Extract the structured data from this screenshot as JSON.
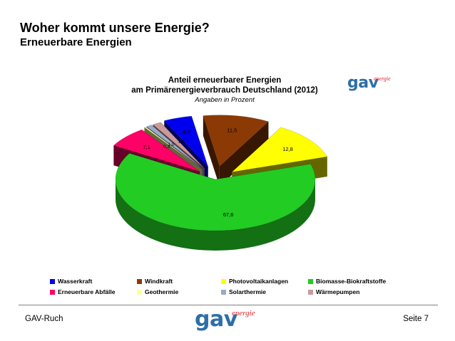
{
  "slide": {
    "title": "Woher kommt unsere Energie?",
    "subtitle": "Erneuerbare Energien"
  },
  "logo": {
    "word": "gav",
    "superscript": "energie"
  },
  "footer": {
    "left": "GAV-Ruch",
    "right": "Seite 7"
  },
  "chart_data": {
    "type": "pie",
    "title_lines": [
      "Anteil erneuerbarer Energien",
      "am Primärenergieverbrauch Deutschland (2012)"
    ],
    "subtitle": "Angaben in Prozent",
    "legend_position": "bottom",
    "slices": [
      {
        "label": "Wasserkraft",
        "value": 4.9,
        "value_label": "4,9",
        "color": "#0000ee"
      },
      {
        "label": "Windkraft",
        "value": 11.5,
        "value_label": "11,5",
        "color": "#8b3a06"
      },
      {
        "label": "Photovoltaikanlagen",
        "value": 12.8,
        "value_label": "12,8",
        "color": "#ffff00"
      },
      {
        "label": "Biomasse-Biokraftstoffe",
        "value": 67.6,
        "value_label": "67,6",
        "color": "#22cc22"
      },
      {
        "label": "Erneuerbare Abfälle",
        "value": 7.1,
        "value_label": "7,1",
        "color": "#ff0066"
      },
      {
        "label": "Geothermie",
        "value": 0.3,
        "value_label": "0,3",
        "color": "#ffff99"
      },
      {
        "label": "Solarthermie",
        "value": 1.0,
        "value_label": "1,0",
        "color": "#99aacc"
      },
      {
        "label": "Wärmepumpen",
        "value": 1.5,
        "value_label": "1,5",
        "color": "#cc9999"
      }
    ]
  }
}
